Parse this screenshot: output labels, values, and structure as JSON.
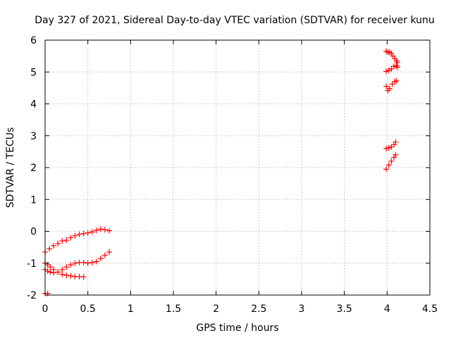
{
  "chart_data": {
    "type": "scatter",
    "title": "Day 327 of 2021, Sidereal Day-to-day VTEC variation (SDTVAR) for receiver kunu",
    "xlabel": "GPS time / hours",
    "ylabel": "SDTVAR / TECUs",
    "xlim": [
      0,
      4.5
    ],
    "ylim": [
      -2,
      6
    ],
    "xticks": [
      "0",
      "0.5",
      "1",
      "1.5",
      "2",
      "2.5",
      "3",
      "3.5",
      "4",
      "4.5"
    ],
    "yticks": [
      "-2",
      "-1",
      "0",
      "1",
      "2",
      "3",
      "4",
      "5",
      "6"
    ],
    "grid": true,
    "marker": "+",
    "color": "#ff0000",
    "series": [
      {
        "x": [
          0.0,
          0.05,
          0.1,
          0.15,
          0.2,
          0.25,
          0.3,
          0.35,
          0.4,
          0.45,
          0.5,
          0.55,
          0.6,
          0.65,
          0.7,
          0.75
        ],
        "y": [
          -0.65,
          -0.55,
          -0.45,
          -0.38,
          -0.3,
          -0.28,
          -0.2,
          -0.14,
          -0.1,
          -0.07,
          -0.05,
          -0.02,
          0.03,
          0.07,
          0.05,
          0.02
        ]
      },
      {
        "x": [
          0.0,
          0.03,
          0.06,
          0.1,
          0.15,
          0.2,
          0.25,
          0.3,
          0.35,
          0.4,
          0.45,
          0.5,
          0.55,
          0.6,
          0.65,
          0.7,
          0.75
        ],
        "y": [
          -1.2,
          -1.25,
          -1.28,
          -1.3,
          -1.28,
          -1.2,
          -1.12,
          -1.05,
          -1.0,
          -0.98,
          -0.98,
          -1.0,
          -0.98,
          -0.95,
          -0.85,
          -0.75,
          -0.65
        ]
      },
      {
        "x": [
          0.0,
          0.03,
          0.06,
          0.1,
          0.15,
          0.2,
          0.25,
          0.3,
          0.35,
          0.4,
          0.45
        ],
        "y": [
          -1.0,
          -1.05,
          -1.12,
          -1.2,
          -1.28,
          -1.35,
          -1.38,
          -1.4,
          -1.42,
          -1.42,
          -1.43
        ]
      },
      {
        "x": [
          0.0,
          0.03
        ],
        "y": [
          -1.95,
          -1.95
        ]
      },
      {
        "x": [
          3.99,
          4.01,
          4.03,
          4.05,
          4.07,
          4.09,
          4.11,
          4.12
        ],
        "y": [
          5.65,
          5.62,
          5.62,
          5.58,
          5.5,
          5.42,
          5.35,
          5.3
        ]
      },
      {
        "x": [
          3.99,
          4.02,
          4.05,
          4.08,
          4.11,
          4.12
        ],
        "y": [
          5.02,
          5.05,
          5.1,
          5.18,
          5.2,
          5.15
        ]
      },
      {
        "x": [
          3.99,
          4.01,
          4.03,
          4.06,
          4.09,
          4.11
        ],
        "y": [
          4.55,
          4.42,
          4.48,
          4.62,
          4.7,
          4.72
        ]
      },
      {
        "x": [
          3.99,
          4.02,
          4.05,
          4.08,
          4.1
        ],
        "y": [
          2.6,
          2.62,
          2.65,
          2.72,
          2.8
        ]
      },
      {
        "x": [
          3.99,
          4.02,
          4.05,
          4.08,
          4.1
        ],
        "y": [
          1.95,
          2.08,
          2.2,
          2.32,
          2.4
        ]
      }
    ]
  }
}
